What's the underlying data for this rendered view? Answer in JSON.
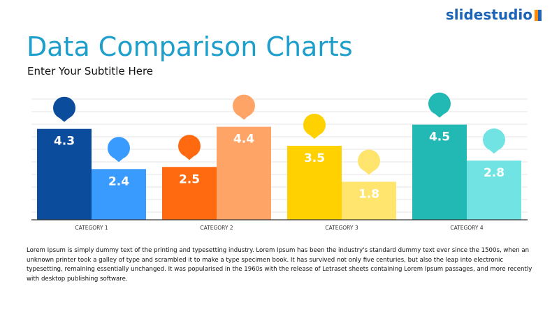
{
  "logo": "slidestudio",
  "chart_data": {
    "type": "bar",
    "title": "Data Comparison Charts",
    "subtitle": "Enter Your Subtitle Here",
    "categories": [
      "CATEGORY 1",
      "CATEGORY 2",
      "CATEGORY 3",
      "CATEGORY 4"
    ],
    "series": [
      {
        "colors": [
          "#0b4c9c",
          "#ff6a10",
          "#ffd100",
          "#22b8b3"
        ],
        "values": [
          4.3,
          2.5,
          3.5,
          4.5
        ]
      },
      {
        "colors": [
          "#3a9bff",
          "#ffa467",
          "#ffe46e",
          "#72e3e3"
        ],
        "values": [
          2.4,
          4.4,
          1.8,
          2.8
        ]
      }
    ]
  },
  "body_text": "Lorem Ipsum is simply dummy text of the printing and typesetting industry. Lorem Ipsum has been the industry's standard dummy text ever since the 1500s, when an unknown printer took a galley of type and scrambled it to make a type specimen book. It has survived not only five centuries, but also the leap into electronic typesetting, remaining essentially unchanged. It was popularised in the 1960s with the release of Letraset sheets containing Lorem Ipsum passages, and more recently with desktop publishing software."
}
